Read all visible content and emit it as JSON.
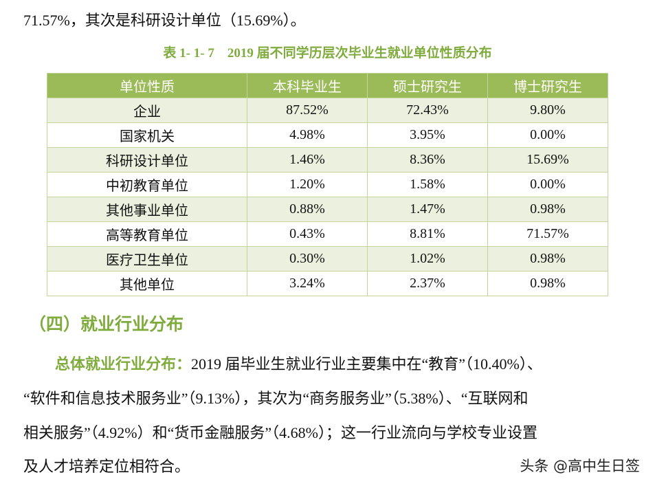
{
  "intro_line": "71.57%，其次是科研设计单位（15.69%）。",
  "table": {
    "caption": "表 1- 1- 7　2019 届不同学历层次毕业生就业单位性质分布",
    "header": [
      "单位性质",
      "本科毕业生",
      "硕士研究生",
      "博士研究生"
    ],
    "rows": [
      [
        "企业",
        "87.52%",
        "72.43%",
        "9.80%"
      ],
      [
        "国家机关",
        "4.98%",
        "3.95%",
        "0.00%"
      ],
      [
        "科研设计单位",
        "1.46%",
        "8.36%",
        "15.69%"
      ],
      [
        "中初教育单位",
        "1.20%",
        "1.58%",
        "0.00%"
      ],
      [
        "其他事业单位",
        "0.88%",
        "1.47%",
        "0.98%"
      ],
      [
        "高等教育单位",
        "0.43%",
        "8.81%",
        "71.57%"
      ],
      [
        "医疗卫生单位",
        "0.30%",
        "1.02%",
        "0.98%"
      ],
      [
        "其他单位",
        "3.24%",
        "2.37%",
        "0.98%"
      ]
    ]
  },
  "section": {
    "heading": "（四）就业行业分布",
    "lead": "总体就业行业分布：",
    "lines": [
      "2019 届毕业生就业行业主要集中在“教育”（10.40%）、",
      "“软件和信息技术服务业”（9.13%），其次为“商务服务业”（5.38%）、“互联网和",
      "相关服务”（4.92%）和“货币金融服务”（4.68%）；这一行业流向与学校专业设置",
      "及人才培养定位相符合。"
    ]
  },
  "watermark": "头条 @高中生日签"
}
